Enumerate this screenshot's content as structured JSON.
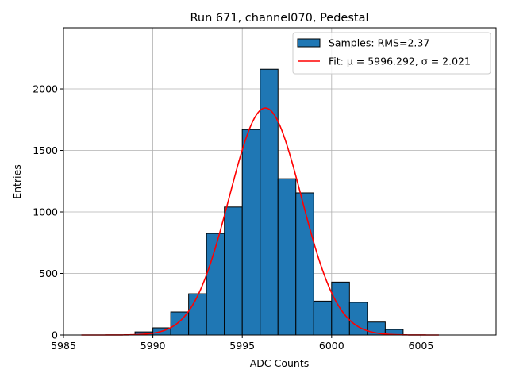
{
  "chart_data": {
    "type": "bar",
    "title": "Run 671, channel070, Pedestal",
    "xlabel": "ADC Counts",
    "ylabel": "Entries",
    "xlim": [
      5985,
      6009.2
    ],
    "ylim": [
      0,
      2497
    ],
    "xticks": [
      5985,
      5990,
      5995,
      6000,
      6005
    ],
    "yticks": [
      0,
      500,
      1000,
      1500,
      2000
    ],
    "grid": true,
    "legend_placement": "top-right",
    "bin_width": 1,
    "bins": [
      5989,
      5990,
      5991,
      5992,
      5993,
      5994,
      5995,
      5996,
      5997,
      5998,
      5999,
      6000,
      6001,
      6002,
      6003
    ],
    "values": [
      25,
      58,
      187,
      335,
      825,
      1040,
      1670,
      2160,
      1270,
      1155,
      275,
      430,
      265,
      105,
      45
    ],
    "fit": {
      "mu": 5996.292,
      "sigma": 2.021,
      "amplitude": 1845,
      "range": [
        5986,
        6006
      ]
    },
    "legend": [
      {
        "label": "Samples: RMS=2.37",
        "color": "#1f77b4",
        "kind": "patch"
      },
      {
        "label": "Fit: μ = 5996.292, σ = 2.021",
        "color": "#ff0000",
        "kind": "line"
      }
    ],
    "colors": {
      "bar": "#1f77b4",
      "fit": "#ff0000",
      "grid": "#b0b0b0"
    }
  }
}
